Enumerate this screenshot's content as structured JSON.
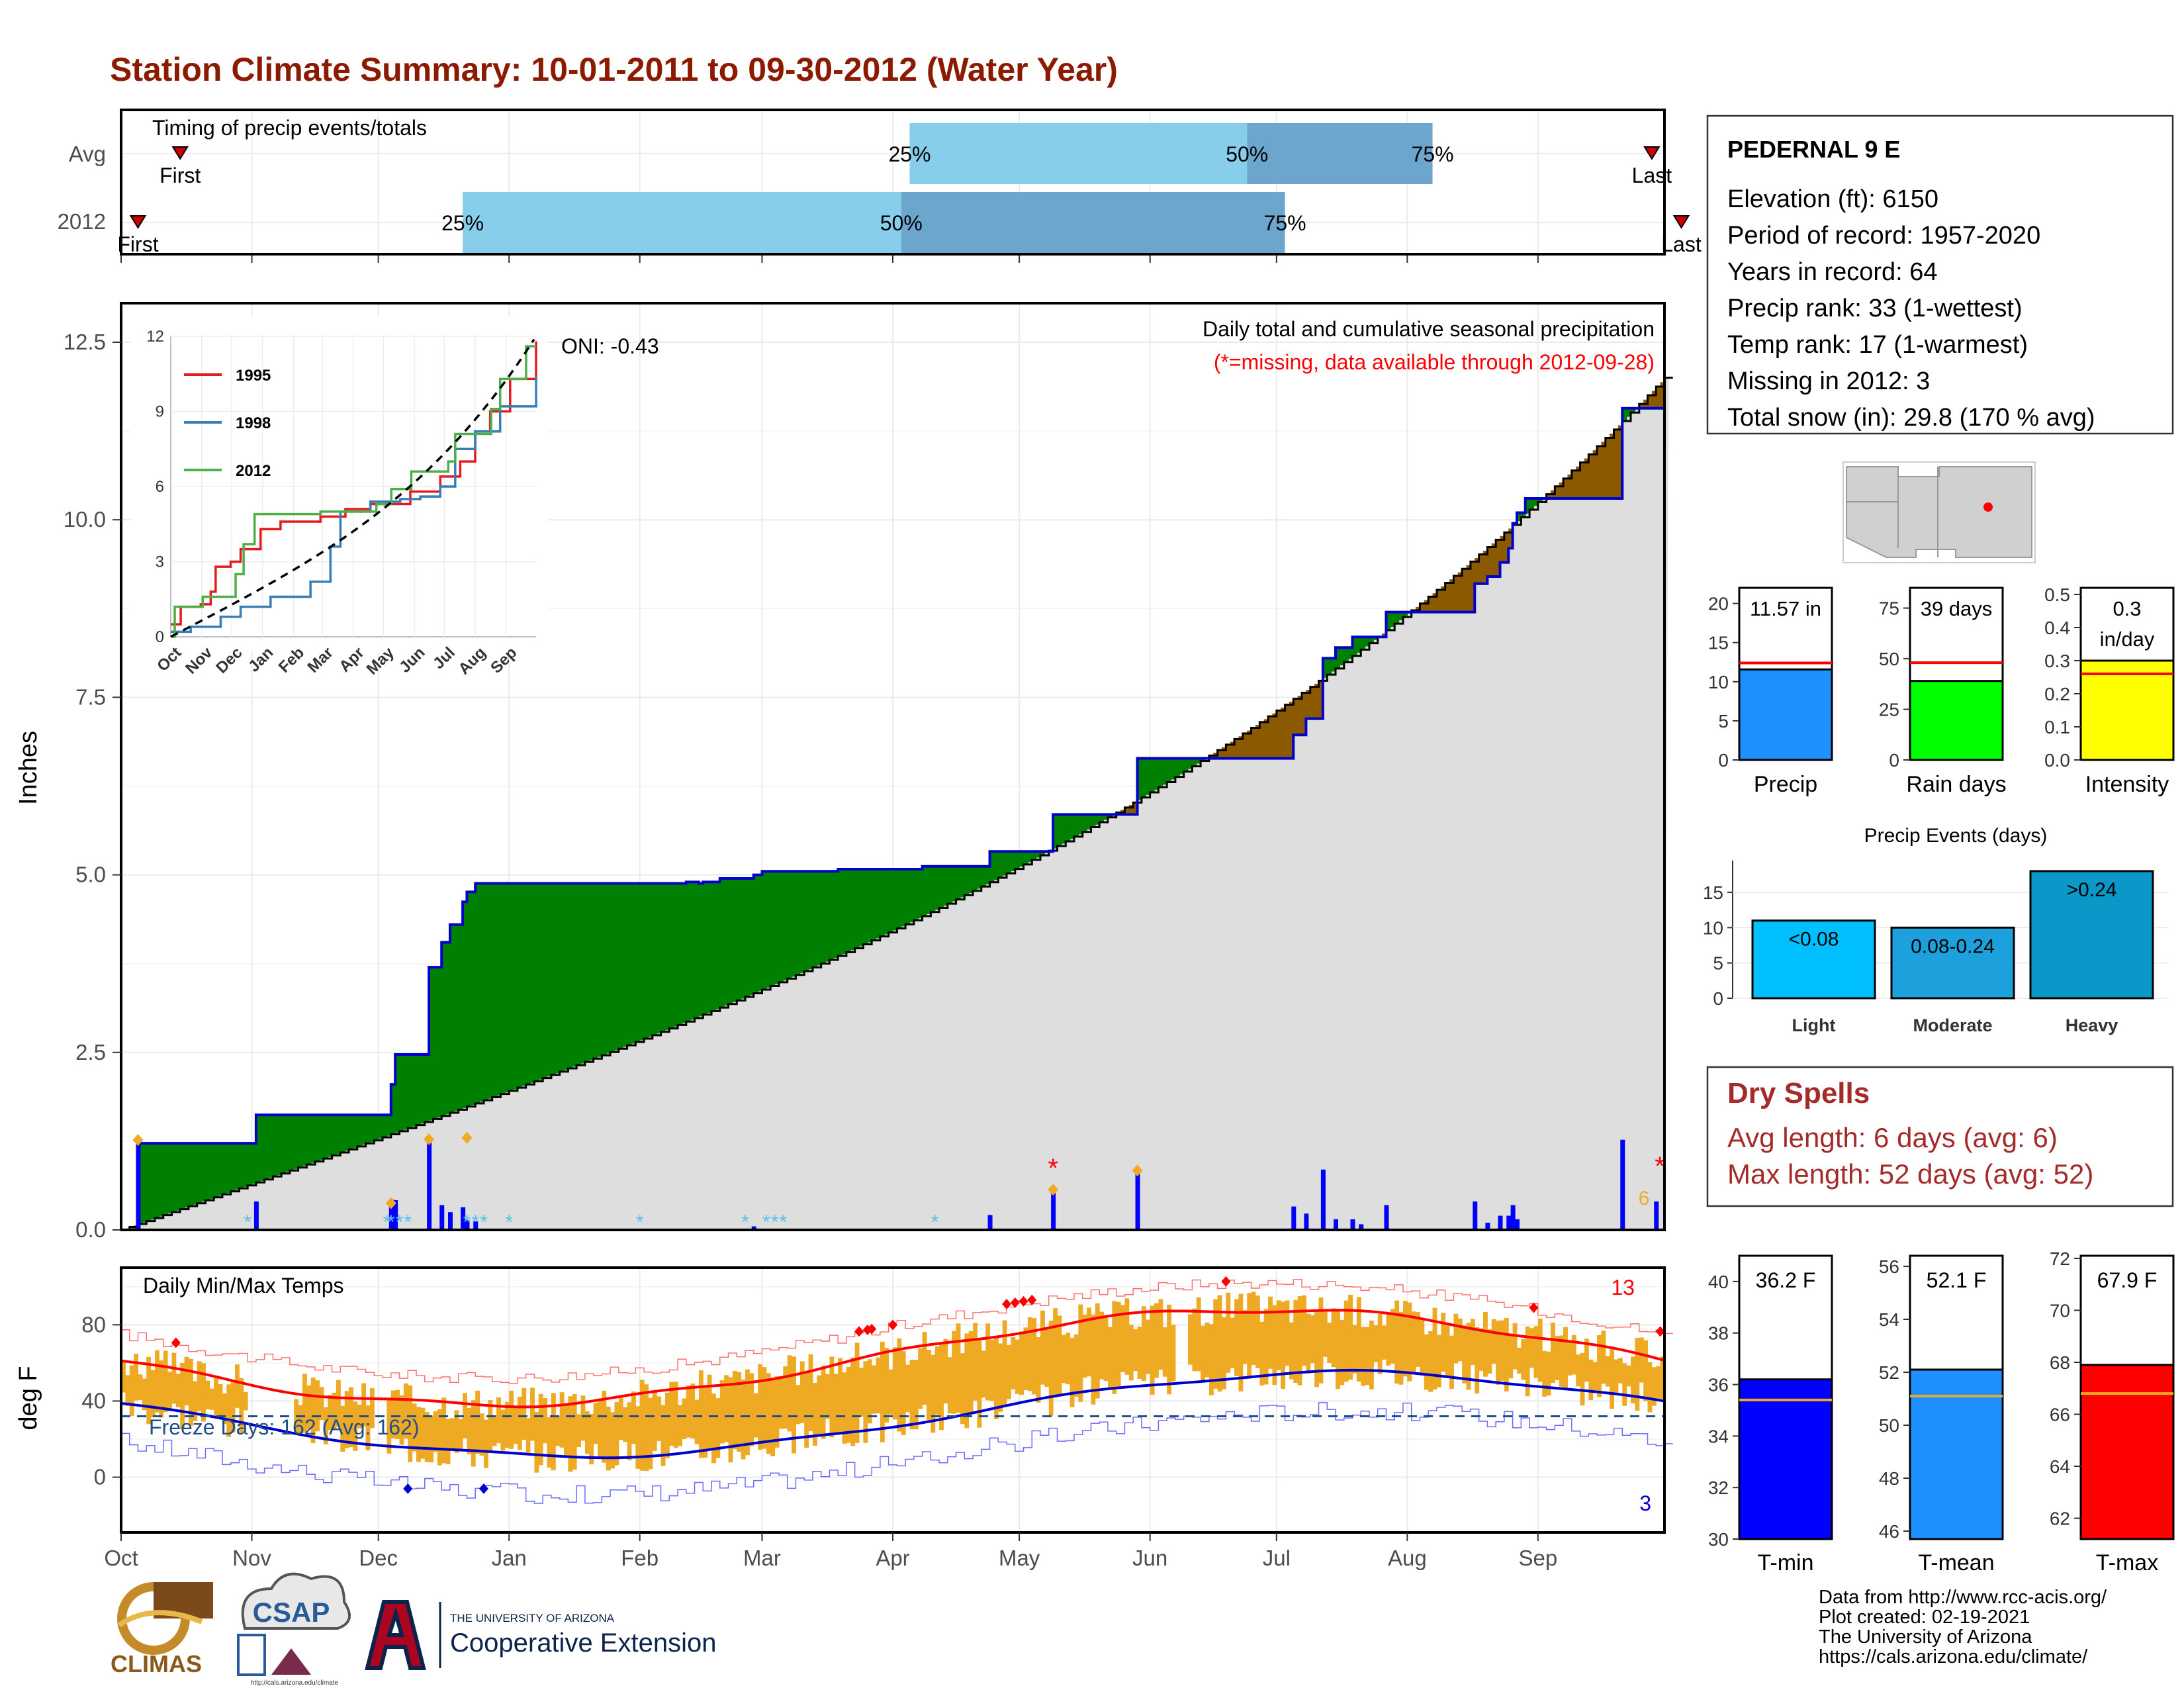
{
  "title": "Station Climate Summary: 10-01-2011 to 09-30-2012 (Water Year)",
  "colors": {
    "title": "#8B1A00",
    "green": "#008000",
    "brown": "#8B5A00",
    "blue_line": "#0000CC",
    "gray_fill": "#DEDEDE",
    "light_blue": "#87CEEB",
    "steel_blue": "#6CA6CD",
    "orange": "#EEAA22",
    "red": "#FF0000",
    "dry_red": "#A52A2A"
  },
  "timing": {
    "label": "Timing of precip events/totals",
    "rows": [
      {
        "name": "Avg",
        "first": {
          "label": "First",
          "doy": 14
        },
        "last": {
          "label": "Last",
          "doy": 363
        },
        "q25": {
          "label": "25%",
          "doy": 187
        },
        "q50": {
          "label": "50%",
          "doy": 267
        },
        "q75": {
          "label": "75%",
          "doy": 311
        }
      },
      {
        "name": "2012",
        "first": {
          "label": "First",
          "doy": 4
        },
        "last": {
          "label": "Last",
          "doy": 370
        },
        "q25": {
          "label": "25%",
          "doy": 81
        },
        "q50": {
          "label": "50%",
          "doy": 185
        },
        "q75": {
          "label": "75%",
          "doy": 276
        }
      }
    ]
  },
  "precip_panel": {
    "ylabel": "Inches",
    "title": "Daily total and cumulative seasonal precipitation",
    "subtitle": "(*=missing, data available through 2012-09-28)",
    "oni": "ONI: -0.43",
    "y_ticks": [
      "0.0",
      "2.5",
      "5.0",
      "7.5",
      "10.0",
      "12.5"
    ],
    "snow_count_label": "6"
  },
  "inset": {
    "y_ticks": [
      "0",
      "3",
      "6",
      "9",
      "12"
    ],
    "x_ticks": [
      "Oct",
      "Nov",
      "Dec",
      "Jan",
      "Feb",
      "Mar",
      "Apr",
      "May",
      "Jun",
      "Jul",
      "Aug",
      "Sep"
    ],
    "legend": [
      {
        "name": "1995",
        "color": "#E41A1C"
      },
      {
        "name": "1998",
        "color": "#377EB8"
      },
      {
        "name": "2012",
        "color": "#4DAF4A"
      }
    ]
  },
  "temp_panel": {
    "ylabel": "deg F",
    "title": "Daily Min/Max Temps",
    "freeze_label": "Freeze Days: 162 (Avg: 162)",
    "y_ticks": [
      "0",
      "40",
      "80"
    ],
    "record_high_count": "13",
    "record_low_count": "3",
    "x_ticks": [
      "Oct",
      "Nov",
      "Dec",
      "Jan",
      "Feb",
      "Mar",
      "Apr",
      "May",
      "Jun",
      "Jul",
      "Aug",
      "Sep"
    ]
  },
  "station": {
    "name": "PEDERNAL 9 E",
    "lines": [
      "Elevation (ft): 6150",
      "Period of record: 1957-2020",
      "Years in record: 64",
      "Precip rank: 33 (1-wettest)",
      "Temp rank: 17 (1-warmest)",
      "Missing in 2012: 3",
      "Total snow (in): 29.8 (170 % avg)"
    ]
  },
  "summary_bars": [
    {
      "name": "Precip",
      "value_label": "11.57 in",
      "value": 11.57,
      "avg": 12.4,
      "ymax": 22,
      "ticks": [
        "0",
        "5",
        "10",
        "15",
        "20"
      ],
      "tickvals": [
        0,
        5,
        10,
        15,
        20
      ],
      "color": "#1E90FF"
    },
    {
      "name": "Rain days",
      "value_label": "39 days",
      "value": 39,
      "avg": 48,
      "ymax": 85,
      "ticks": [
        "0",
        "25",
        "50",
        "75"
      ],
      "tickvals": [
        0,
        25,
        50,
        75
      ],
      "color": "#00FF00"
    },
    {
      "name": "Intensity",
      "value_label": "0.3 in/day",
      "value": 0.3,
      "avg": 0.26,
      "ymax": 0.52,
      "ticks": [
        "0.0",
        "0.1",
        "0.2",
        "0.3",
        "0.4",
        "0.5"
      ],
      "tickvals": [
        0,
        0.1,
        0.2,
        0.3,
        0.4,
        0.5
      ],
      "color": "#FFFF00"
    }
  ],
  "precip_events": {
    "title": "Precip Events (days)",
    "y_ticks": [
      "0",
      "5",
      "10",
      "15"
    ],
    "bars": [
      {
        "label": "<0.08",
        "category": "Light",
        "value": 11,
        "color": "#00BFFF"
      },
      {
        "label": "0.08-0.24",
        "category": "Moderate",
        "value": 10,
        "color": "#1CA1DC"
      },
      {
        "label": ">0.24",
        "category": "Heavy",
        "value": 18,
        "color": "#0B98C8"
      }
    ]
  },
  "dry_spells": {
    "title": "Dry Spells",
    "avg": "Avg length: 6 days (avg: 6)",
    "max": "Max length: 52 days (avg: 52)"
  },
  "temp_summary": [
    {
      "name": "T-min",
      "value_label": "36.2 F",
      "value": 36.2,
      "avg": 35.4,
      "ymin": 30,
      "ymax": 41,
      "ticks": [
        "30",
        "32",
        "34",
        "36",
        "38",
        "40"
      ],
      "tickvals": [
        30,
        32,
        34,
        36,
        38,
        40
      ],
      "color": "#0000FF"
    },
    {
      "name": "T-mean",
      "value_label": "52.1 F",
      "value": 52.1,
      "avg": 51.1,
      "ymin": 45.7,
      "ymax": 56.4,
      "ticks": [
        "46",
        "48",
        "50",
        "52",
        "54",
        "56"
      ],
      "tickvals": [
        46,
        48,
        50,
        52,
        54,
        56
      ],
      "color": "#1E90FF"
    },
    {
      "name": "T-max",
      "value_label": "67.9 F",
      "value": 67.9,
      "avg": 66.8,
      "ymin": 61.2,
      "ymax": 72.1,
      "ticks": [
        "62",
        "64",
        "66",
        "68",
        "70",
        "72"
      ],
      "tickvals": [
        62,
        64,
        66,
        68,
        70,
        72
      ],
      "color": "#FF0000"
    }
  ],
  "footer": {
    "lines": [
      "Data from http://www.rcc-acis.org/",
      "Plot created: 02-19-2021",
      "The University of Arizona",
      "https://cals.arizona.edu/climate/"
    ],
    "logo1": "CLIMAS",
    "logo2": "CSAP",
    "logo2_url": "http://cals.arizona.edu/climate",
    "logo3_small": "THE UNIVERSITY OF ARIZONA",
    "logo3_big": "Cooperative Extension"
  }
}
